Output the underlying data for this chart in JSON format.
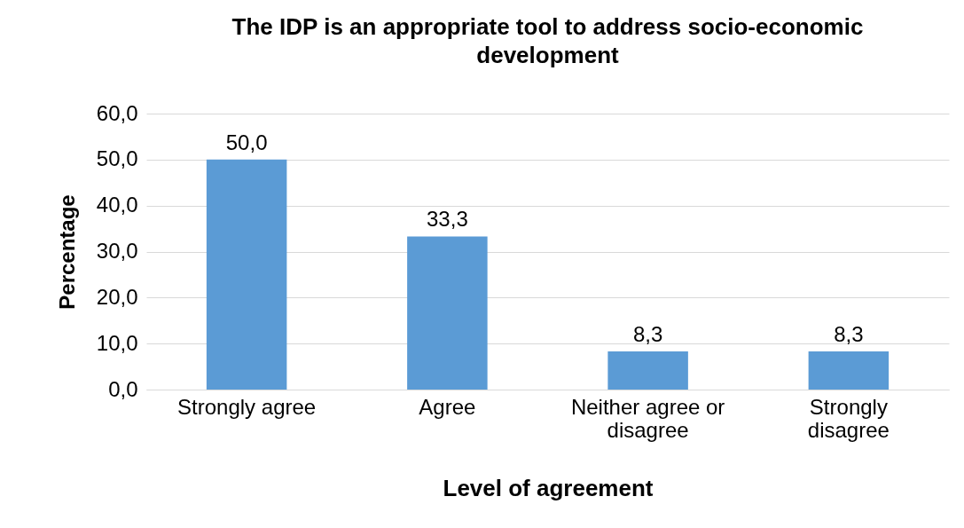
{
  "chart_data": {
    "type": "bar",
    "title": "The IDP is an appropriate tool to address socio-economic development",
    "xlabel": "Level of agreement",
    "ylabel": "Percentage",
    "categories": [
      "Strongly agree",
      "Agree",
      "Neither agree or disagree",
      "Strongly disagree"
    ],
    "values": [
      50.0,
      33.3,
      8.3,
      8.3
    ],
    "color": "#5b9bd5",
    "value_labels": [
      "50,0",
      "33,3",
      "8,3",
      "8,3"
    ],
    "ylim": [
      0,
      60
    ],
    "yticks": [
      {
        "value": 0,
        "label": "0,0"
      },
      {
        "value": 10,
        "label": "10,0"
      },
      {
        "value": 20,
        "label": "20,0"
      },
      {
        "value": 30,
        "label": "30,0"
      },
      {
        "value": 40,
        "label": "40,0"
      },
      {
        "value": 50,
        "label": "50,0"
      },
      {
        "value": 60,
        "label": "60,0"
      }
    ],
    "grid": "y"
  }
}
